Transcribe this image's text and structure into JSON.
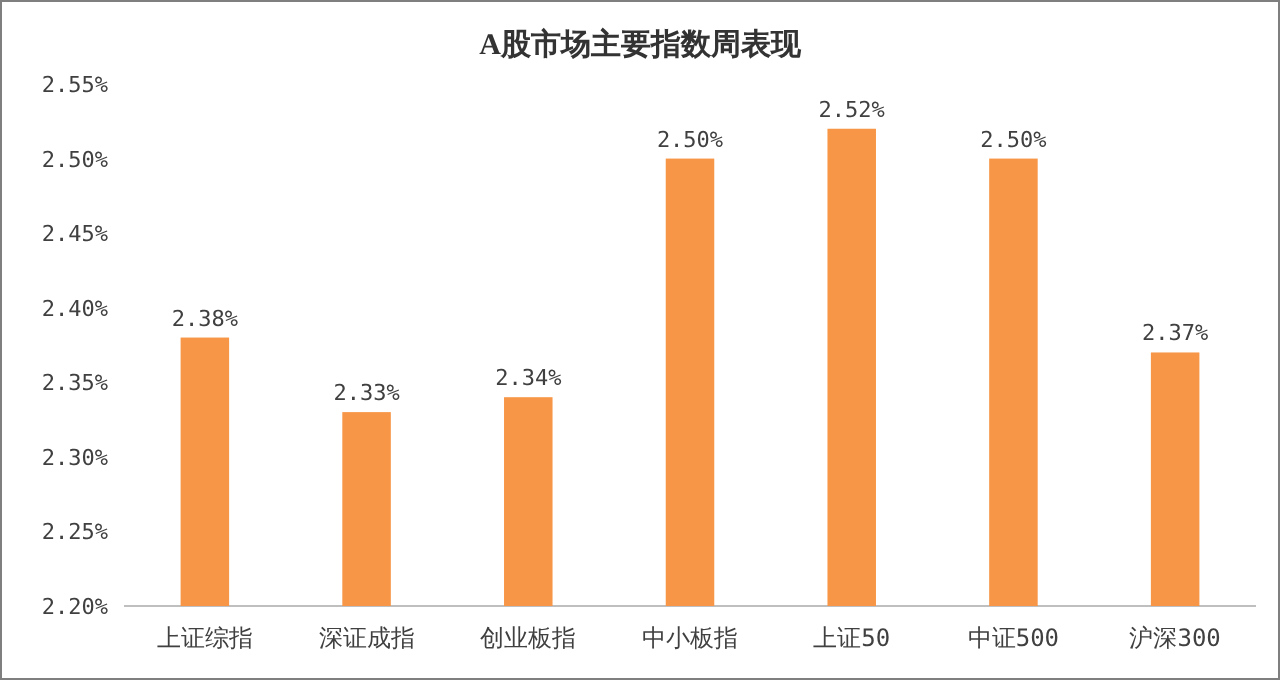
{
  "chart_data": {
    "type": "bar",
    "title": "A股市场主要指数周表现",
    "categories": [
      "上证综指",
      "深证成指",
      "创业板指",
      "中小板指",
      "上证50",
      "中证500",
      "沪深300"
    ],
    "values": [
      2.38,
      2.33,
      2.34,
      2.5,
      2.52,
      2.5,
      2.37
    ],
    "value_labels": [
      "2.38%",
      "2.33%",
      "2.34%",
      "2.50%",
      "2.52%",
      "2.50%",
      "2.37%"
    ],
    "color": "#f79646",
    "ylim": [
      2.2,
      2.55
    ],
    "yticks": [
      {
        "value": 2.2,
        "label": "2.20%"
      },
      {
        "value": 2.25,
        "label": "2.25%"
      },
      {
        "value": 2.3,
        "label": "2.30%"
      },
      {
        "value": 2.35,
        "label": "2.35%"
      },
      {
        "value": 2.4,
        "label": "2.40%"
      },
      {
        "value": 2.45,
        "label": "2.45%"
      },
      {
        "value": 2.5,
        "label": "2.50%"
      },
      {
        "value": 2.55,
        "label": "2.55%"
      }
    ],
    "grid": false
  }
}
